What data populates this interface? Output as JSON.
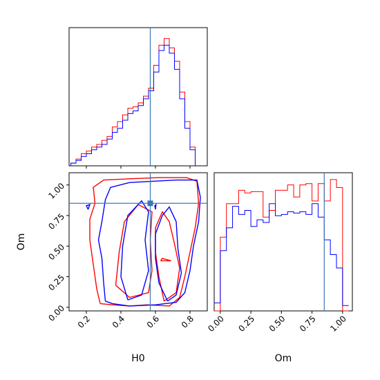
{
  "chart_data": [
    {
      "type": "histogram",
      "panel": "H0 marginal",
      "xlim": [
        0.1,
        0.9
      ],
      "truth": 0.57,
      "bin_edges": [
        0.11,
        0.14,
        0.17,
        0.2,
        0.23,
        0.26,
        0.29,
        0.32,
        0.35,
        0.38,
        0.41,
        0.44,
        0.47,
        0.5,
        0.53,
        0.56,
        0.59,
        0.62,
        0.65,
        0.68,
        0.71,
        0.74,
        0.77,
        0.8,
        0.83
      ],
      "series": [
        {
          "color": "#ff0000",
          "values": [
            0.02,
            0.05,
            0.09,
            0.11,
            0.14,
            0.16,
            0.19,
            0.22,
            0.29,
            0.33,
            0.38,
            0.43,
            0.44,
            0.47,
            0.52,
            0.58,
            0.75,
            0.9,
            0.95,
            0.88,
            0.78,
            0.55,
            0.33,
            0.14
          ]
        },
        {
          "color": "#0000ff",
          "values": [
            0.02,
            0.04,
            0.07,
            0.09,
            0.12,
            0.14,
            0.16,
            0.2,
            0.25,
            0.28,
            0.34,
            0.39,
            0.41,
            0.45,
            0.5,
            0.56,
            0.7,
            0.86,
            0.9,
            0.84,
            0.72,
            0.5,
            0.28,
            0.12
          ]
        }
      ]
    },
    {
      "type": "contour",
      "panel": "H0 vs Om joint",
      "xlabel": "H0",
      "ylabel": "Om",
      "xlim": [
        0.1,
        0.9
      ],
      "ylim": [
        -0.03,
        1.1
      ],
      "xticks": [
        "0.2",
        "0.4",
        "0.6",
        "0.8"
      ],
      "yticks": [
        "0.00",
        "0.25",
        "0.50",
        "0.75",
        "1.00"
      ],
      "truth": {
        "H0": 0.57,
        "Om": 0.85
      },
      "series": [
        {
          "color": "#ff0000",
          "contours": [
            [
              [
                0.28,
                0.03
              ],
              [
                0.26,
                0.15
              ],
              [
                0.24,
                0.35
              ],
              [
                0.22,
                0.55
              ],
              [
                0.22,
                0.72
              ],
              [
                0.25,
                0.85
              ],
              [
                0.24,
                0.98
              ],
              [
                0.3,
                1.04
              ],
              [
                0.45,
                1.05
              ],
              [
                0.62,
                1.06
              ],
              [
                0.78,
                1.06
              ],
              [
                0.84,
                1.03
              ],
              [
                0.85,
                0.85
              ],
              [
                0.83,
                0.65
              ],
              [
                0.8,
                0.45
              ],
              [
                0.77,
                0.25
              ],
              [
                0.74,
                0.08
              ],
              [
                0.68,
                0.01
              ],
              [
                0.55,
                0.02
              ],
              [
                0.45,
                0.01
              ],
              [
                0.35,
                0.02
              ],
              [
                0.28,
                0.03
              ]
            ],
            [
              [
                0.37,
                0.18
              ],
              [
                0.39,
                0.45
              ],
              [
                0.42,
                0.7
              ],
              [
                0.5,
                0.84
              ],
              [
                0.58,
                0.78
              ],
              [
                0.57,
                0.55
              ],
              [
                0.58,
                0.3
              ],
              [
                0.56,
                0.12
              ],
              [
                0.45,
                0.08
              ],
              [
                0.37,
                0.18
              ]
            ],
            [
              [
                0.65,
                0.05
              ],
              [
                0.62,
                0.25
              ],
              [
                0.6,
                0.45
              ],
              [
                0.6,
                0.65
              ],
              [
                0.64,
                0.78
              ],
              [
                0.68,
                0.7
              ],
              [
                0.71,
                0.52
              ],
              [
                0.74,
                0.32
              ],
              [
                0.72,
                0.12
              ],
              [
                0.65,
                0.05
              ]
            ],
            [
              [
                0.63,
                0.38
              ],
              [
                0.64,
                0.4
              ],
              [
                0.69,
                0.38
              ],
              [
                0.63,
                0.38
              ]
            ]
          ]
        },
        {
          "color": "#0000ff",
          "contours": [
            [
              [
                0.31,
                0.05
              ],
              [
                0.3,
                0.2
              ],
              [
                0.29,
                0.4
              ],
              [
                0.27,
                0.55
              ],
              [
                0.29,
                0.7
              ],
              [
                0.31,
                0.88
              ],
              [
                0.34,
                0.98
              ],
              [
                0.45,
                1.02
              ],
              [
                0.58,
                1.03
              ],
              [
                0.72,
                1.04
              ],
              [
                0.84,
                1.04
              ],
              [
                0.86,
                0.9
              ],
              [
                0.85,
                0.7
              ],
              [
                0.82,
                0.5
              ],
              [
                0.8,
                0.3
              ],
              [
                0.77,
                0.12
              ],
              [
                0.72,
                0.04
              ],
              [
                0.6,
                0.02
              ],
              [
                0.45,
                0.01
              ],
              [
                0.35,
                0.03
              ],
              [
                0.31,
                0.05
              ]
            ],
            [
              [
                0.44,
                0.06
              ],
              [
                0.4,
                0.25
              ],
              [
                0.41,
                0.5
              ],
              [
                0.44,
                0.75
              ],
              [
                0.52,
                0.87
              ],
              [
                0.56,
                0.78
              ],
              [
                0.54,
                0.55
              ],
              [
                0.56,
                0.3
              ],
              [
                0.52,
                0.1
              ],
              [
                0.44,
                0.06
              ]
            ],
            [
              [
                0.67,
                0.05
              ],
              [
                0.62,
                0.2
              ],
              [
                0.6,
                0.4
              ],
              [
                0.6,
                0.6
              ],
              [
                0.64,
                0.75
              ],
              [
                0.68,
                0.82
              ],
              [
                0.72,
                0.7
              ],
              [
                0.73,
                0.48
              ],
              [
                0.75,
                0.28
              ],
              [
                0.72,
                0.1
              ],
              [
                0.67,
                0.05
              ]
            ],
            [
              [
                0.21,
                0.8
              ],
              [
                0.2,
                0.83
              ],
              [
                0.22,
                0.84
              ],
              [
                0.21,
                0.8
              ]
            ],
            [
              [
                0.6,
                0.8
              ],
              [
                0.596,
                0.83
              ],
              [
                0.603,
                0.84
              ],
              [
                0.6,
                0.8
              ]
            ]
          ]
        }
      ]
    },
    {
      "type": "histogram",
      "panel": "Om marginal",
      "xlabel": "Om",
      "xlim": [
        -0.05,
        1.08
      ],
      "xticks": [
        "0.00",
        "0.25",
        "0.50",
        "0.75",
        "1.00"
      ],
      "truth": 0.85,
      "bin_edges": [
        -0.05,
        0.0,
        0.05,
        0.1,
        0.15,
        0.2,
        0.25,
        0.3,
        0.35,
        0.4,
        0.45,
        0.5,
        0.55,
        0.6,
        0.65,
        0.7,
        0.75,
        0.8,
        0.85,
        0.9,
        0.95,
        1.0,
        1.05
      ],
      "series": [
        {
          "color": "#ff0000",
          "values": [
            0.0,
            0.55,
            0.8,
            0.8,
            0.9,
            0.88,
            0.89,
            0.89,
            0.7,
            0.75,
            0.9,
            0.9,
            0.94,
            0.85,
            0.94,
            0.95,
            0.82,
            0.95,
            0.82,
            0.98,
            0.92,
            0.0
          ]
        },
        {
          "color": "#0000ff",
          "values": [
            0.06,
            0.45,
            0.62,
            0.78,
            0.72,
            0.75,
            0.63,
            0.68,
            0.66,
            0.8,
            0.71,
            0.72,
            0.74,
            0.73,
            0.74,
            0.72,
            0.8,
            0.7,
            0.53,
            0.42,
            0.32,
            0.04
          ]
        }
      ]
    }
  ]
}
